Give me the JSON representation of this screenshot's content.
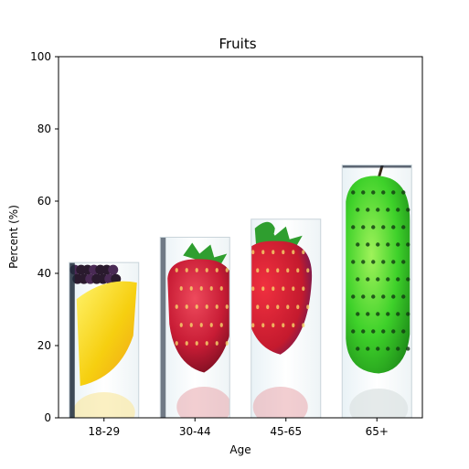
{
  "chart_data": {
    "type": "bar",
    "title": "Fruits",
    "xlabel": "Age",
    "ylabel": "Percent (%)",
    "categories": [
      "18-29",
      "30-44",
      "45-65",
      "65+"
    ],
    "values": [
      43,
      50,
      55,
      70
    ],
    "ylim": [
      0,
      100
    ],
    "yticks": [
      0,
      20,
      40,
      60,
      80,
      100
    ],
    "grid": false,
    "legend": "none",
    "bar_fills": [
      "lemon-blackberry-picture",
      "strawberry-picture",
      "strawberry-picture",
      "green-pear-picture"
    ],
    "colors": {
      "lemon": "#f3c613",
      "blackberry": "#2a1a2e",
      "strawberry": "#c8203a",
      "leaf": "#2f9e2f",
      "pear": "#3fd02a",
      "frame": "#1e2a3a"
    }
  }
}
